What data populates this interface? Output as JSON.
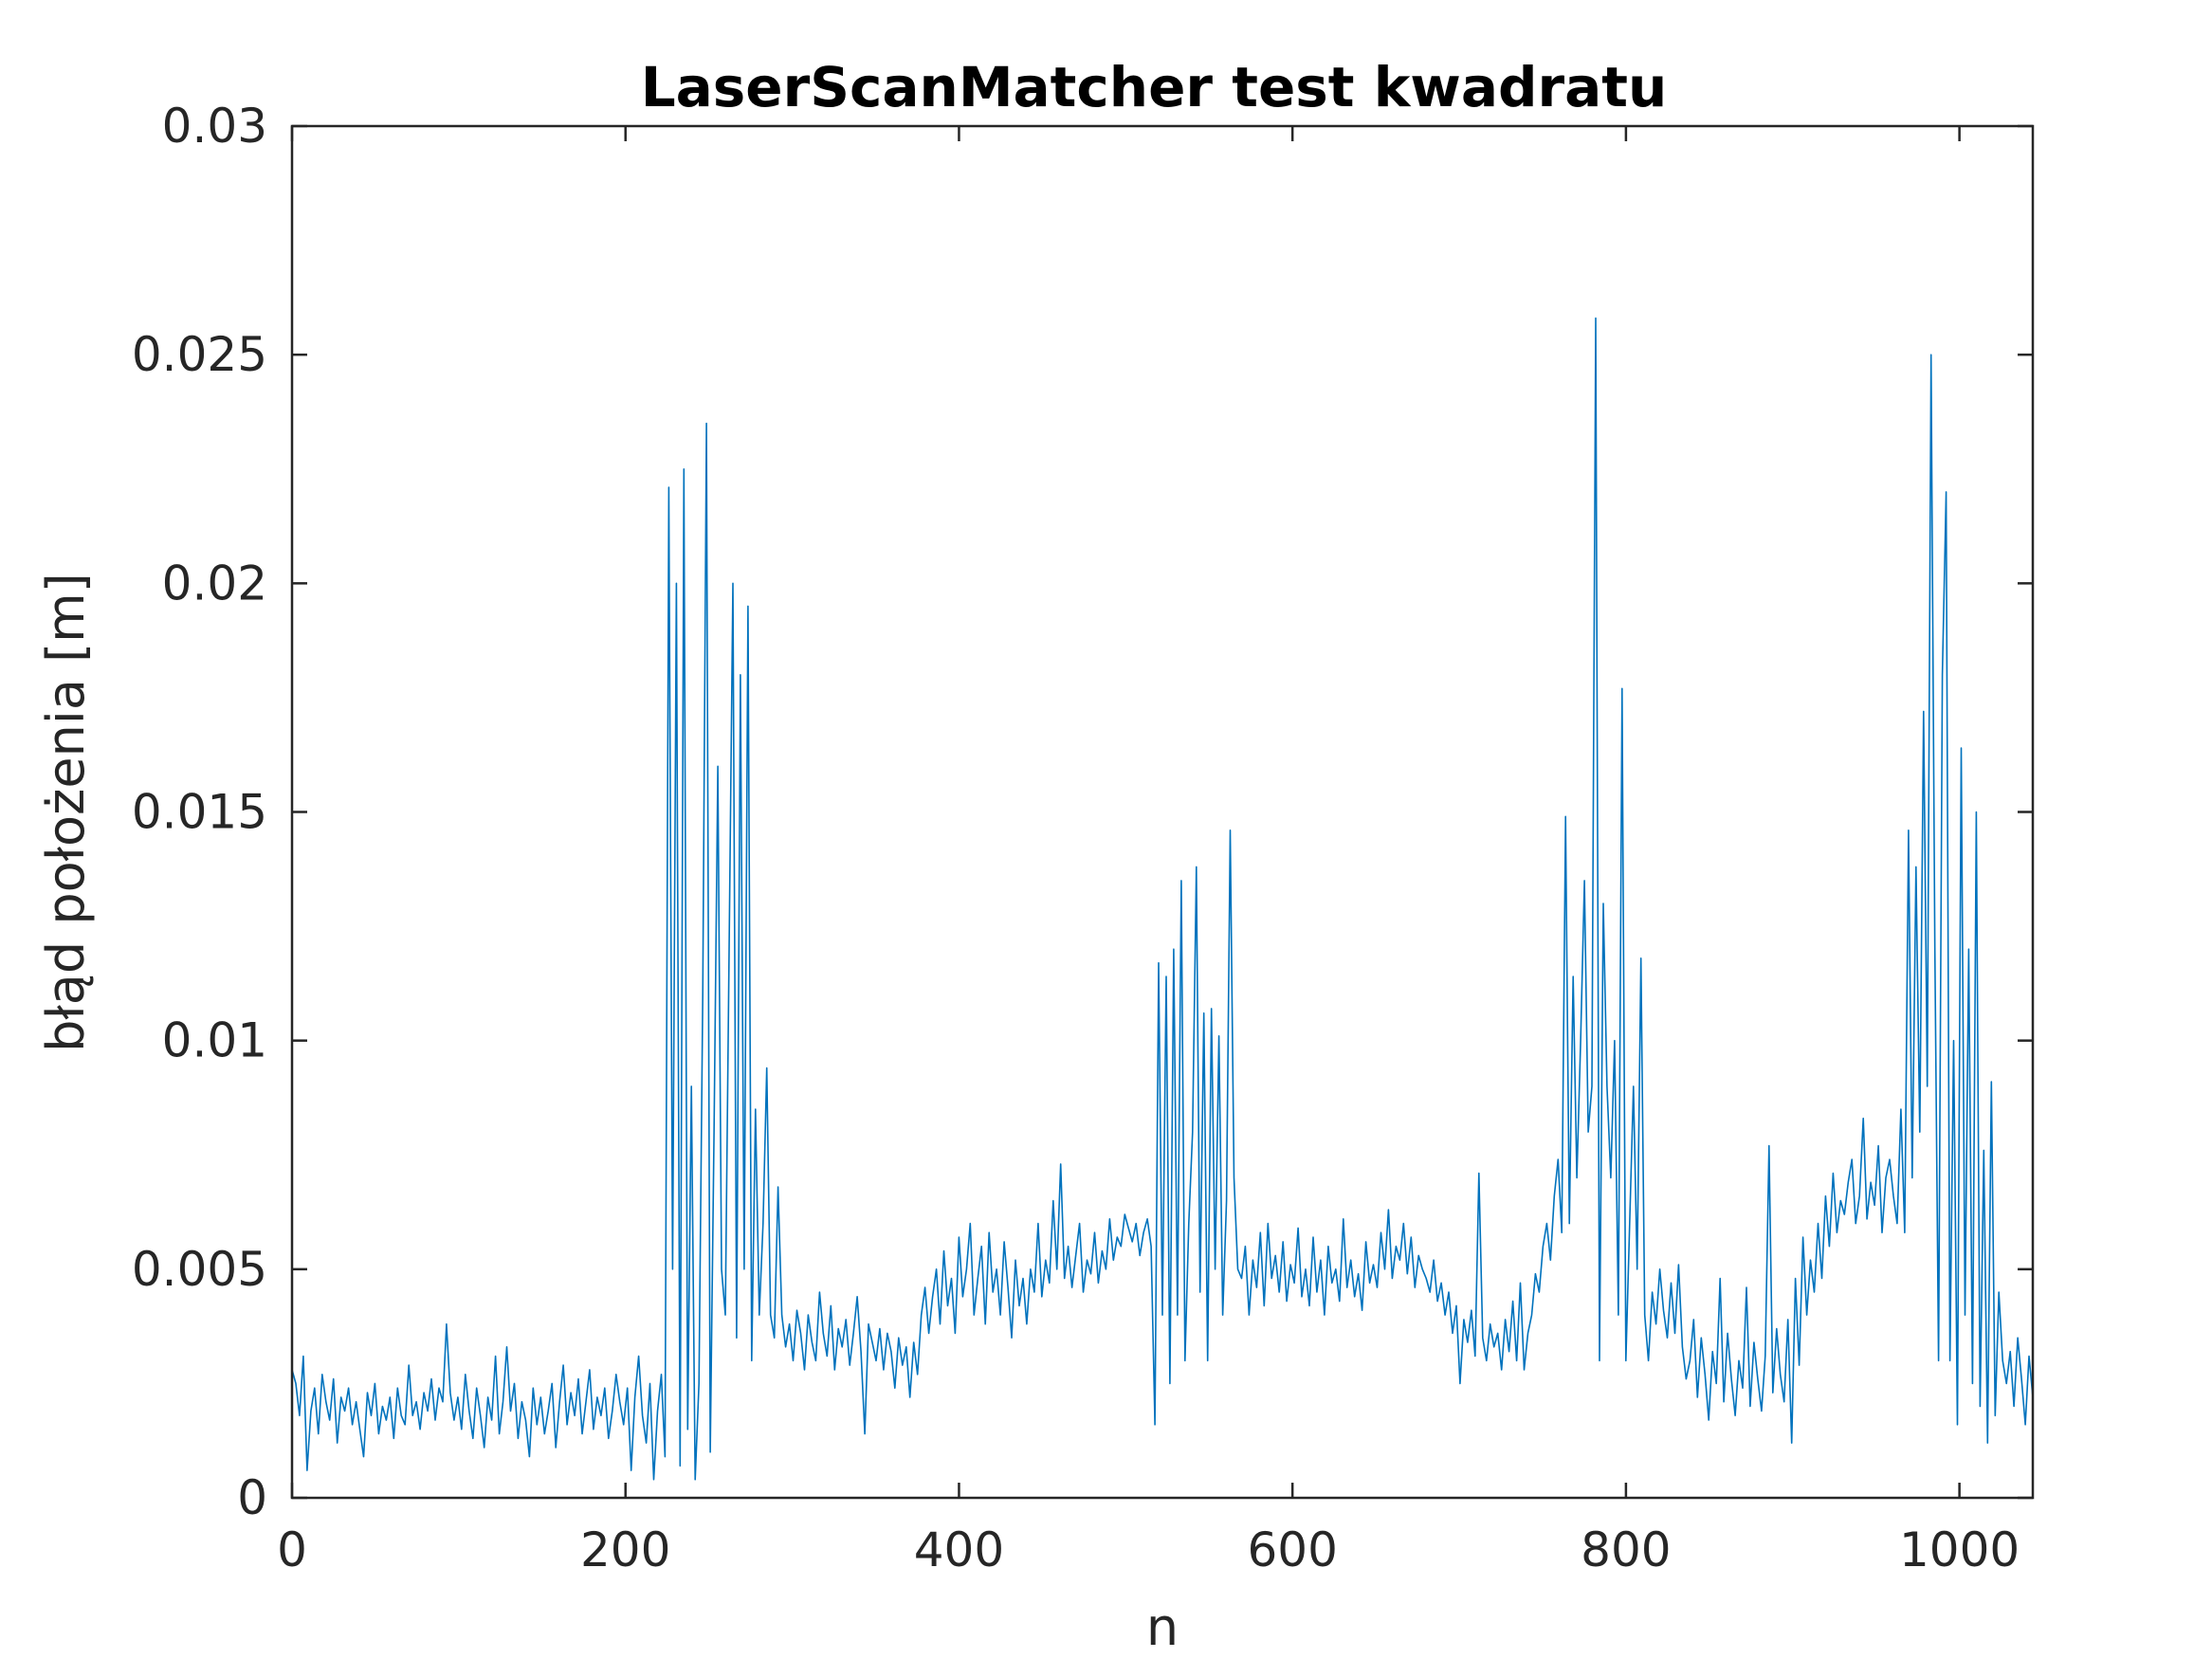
{
  "chart_data": {
    "type": "line",
    "title": "LaserScanMatcher test kwadratu",
    "xlabel": "n",
    "ylabel": "błąd położenia [m]",
    "xlim": [
      0,
      1044
    ],
    "ylim": [
      0,
      0.03
    ],
    "xticks": [
      0,
      200,
      400,
      600,
      800,
      1000
    ],
    "yticks": [
      0,
      0.005,
      0.01,
      0.015,
      0.02,
      0.025,
      0.03
    ],
    "grid": false,
    "legend": "none",
    "line_color": "#0072BD",
    "series": [
      {
        "values": [
          0.0028,
          0.0025,
          0.0018,
          0.0031,
          0.0006,
          0.0019,
          0.0024,
          0.0014,
          0.0027,
          0.0021,
          0.0017,
          0.0026,
          0.0012,
          0.0022,
          0.0019,
          0.0024,
          0.0016,
          0.0021,
          0.0015,
          0.0009,
          0.0023,
          0.0018,
          0.0025,
          0.0014,
          0.002,
          0.0017,
          0.0022,
          0.0013,
          0.0024,
          0.0018,
          0.0016,
          0.0029,
          0.0018,
          0.0021,
          0.0015,
          0.0023,
          0.0019,
          0.0026,
          0.0017,
          0.0024,
          0.0021,
          0.0038,
          0.0023,
          0.0017,
          0.0022,
          0.0015,
          0.0027,
          0.0019,
          0.0013,
          0.0024,
          0.0018,
          0.0011,
          0.0022,
          0.0017,
          0.0031,
          0.0014,
          0.0021,
          0.0033,
          0.0019,
          0.0025,
          0.0013,
          0.0021,
          0.0017,
          0.0009,
          0.0024,
          0.0016,
          0.0022,
          0.0014,
          0.0019,
          0.0025,
          0.0011,
          0.0021,
          0.0029,
          0.0016,
          0.0023,
          0.0018,
          0.0026,
          0.0014,
          0.0021,
          0.0028,
          0.0015,
          0.0022,
          0.0018,
          0.0024,
          0.0013,
          0.0019,
          0.0027,
          0.0021,
          0.0016,
          0.0024,
          0.0006,
          0.0022,
          0.0031,
          0.0018,
          0.0012,
          0.0025,
          0.0004,
          0.0019,
          0.0027,
          0.0009,
          0.0221,
          0.005,
          0.02,
          0.0007,
          0.0225,
          0.0015,
          0.009,
          0.0004,
          0.0025,
          0.011,
          0.0235,
          0.001,
          0.008,
          0.016,
          0.005,
          0.004,
          0.012,
          0.02,
          0.0035,
          0.018,
          0.005,
          0.0195,
          0.003,
          0.0085,
          0.004,
          0.006,
          0.0094,
          0.004,
          0.0035,
          0.0068,
          0.004,
          0.0033,
          0.0038,
          0.003,
          0.0041,
          0.0036,
          0.0028,
          0.004,
          0.0034,
          0.003,
          0.0045,
          0.0036,
          0.0031,
          0.0042,
          0.0028,
          0.0037,
          0.0033,
          0.0039,
          0.0029,
          0.0036,
          0.0044,
          0.0032,
          0.0014,
          0.0038,
          0.0034,
          0.003,
          0.0037,
          0.0028,
          0.0036,
          0.0032,
          0.0024,
          0.0035,
          0.0029,
          0.0033,
          0.0022,
          0.0034,
          0.0027,
          0.004,
          0.0046,
          0.0036,
          0.0044,
          0.005,
          0.0038,
          0.0054,
          0.0042,
          0.0048,
          0.0036,
          0.0057,
          0.0044,
          0.005,
          0.006,
          0.004,
          0.0048,
          0.0055,
          0.0038,
          0.0058,
          0.0045,
          0.005,
          0.004,
          0.0056,
          0.0046,
          0.0035,
          0.0052,
          0.0042,
          0.0048,
          0.0038,
          0.005,
          0.0045,
          0.006,
          0.0044,
          0.0052,
          0.0047,
          0.0065,
          0.005,
          0.0073,
          0.0048,
          0.0055,
          0.0046,
          0.0053,
          0.006,
          0.0045,
          0.0052,
          0.0049,
          0.0058,
          0.0047,
          0.0054,
          0.005,
          0.0061,
          0.0052,
          0.0057,
          0.0055,
          0.0062,
          0.0059,
          0.0056,
          0.006,
          0.0053,
          0.0058,
          0.0061,
          0.0055,
          0.0016,
          0.0117,
          0.004,
          0.0114,
          0.0025,
          0.012,
          0.004,
          0.0135,
          0.003,
          0.006,
          0.008,
          0.0138,
          0.0045,
          0.0106,
          0.003,
          0.0107,
          0.005,
          0.0101,
          0.004,
          0.0065,
          0.0146,
          0.007,
          0.005,
          0.0048,
          0.0055,
          0.004,
          0.0052,
          0.0046,
          0.0058,
          0.0042,
          0.006,
          0.0048,
          0.0053,
          0.0045,
          0.0056,
          0.0043,
          0.0051,
          0.0047,
          0.0059,
          0.0044,
          0.005,
          0.0042,
          0.0057,
          0.0045,
          0.0052,
          0.004,
          0.0055,
          0.0047,
          0.005,
          0.0043,
          0.0061,
          0.0046,
          0.0052,
          0.0044,
          0.0049,
          0.0041,
          0.0056,
          0.0047,
          0.0051,
          0.0046,
          0.0058,
          0.005,
          0.0063,
          0.0048,
          0.0055,
          0.0052,
          0.006,
          0.0049,
          0.0057,
          0.0046,
          0.0053,
          0.005,
          0.0048,
          0.0045,
          0.0052,
          0.0043,
          0.0047,
          0.004,
          0.0045,
          0.0036,
          0.0042,
          0.0025,
          0.0039,
          0.0034,
          0.0041,
          0.0031,
          0.0071,
          0.0035,
          0.003,
          0.0038,
          0.0033,
          0.0036,
          0.0028,
          0.0039,
          0.0032,
          0.0043,
          0.003,
          0.0047,
          0.0028,
          0.0036,
          0.004,
          0.0049,
          0.0045,
          0.0055,
          0.006,
          0.0052,
          0.0066,
          0.0074,
          0.0058,
          0.0149,
          0.006,
          0.0114,
          0.007,
          0.01,
          0.0135,
          0.008,
          0.009,
          0.0258,
          0.003,
          0.013,
          0.009,
          0.007,
          0.01,
          0.004,
          0.0177,
          0.003,
          0.006,
          0.009,
          0.005,
          0.0118,
          0.004,
          0.003,
          0.0045,
          0.0038,
          0.005,
          0.0041,
          0.0035,
          0.0047,
          0.0036,
          0.0051,
          0.0033,
          0.0026,
          0.003,
          0.0039,
          0.0022,
          0.0035,
          0.0027,
          0.0017,
          0.0032,
          0.0025,
          0.0048,
          0.0021,
          0.0036,
          0.0026,
          0.0018,
          0.003,
          0.0024,
          0.0046,
          0.002,
          0.0034,
          0.0026,
          0.0019,
          0.0031,
          0.0077,
          0.0023,
          0.0037,
          0.0027,
          0.0021,
          0.0039,
          0.0012,
          0.0048,
          0.0029,
          0.0057,
          0.004,
          0.0052,
          0.0045,
          0.006,
          0.0048,
          0.0066,
          0.0055,
          0.0071,
          0.0058,
          0.0065,
          0.0062,
          0.0069,
          0.0074,
          0.006,
          0.0066,
          0.0083,
          0.0061,
          0.0069,
          0.0064,
          0.0077,
          0.0058,
          0.007,
          0.0074,
          0.0066,
          0.006,
          0.0085,
          0.0058,
          0.0146,
          0.007,
          0.0138,
          0.008,
          0.0172,
          0.009,
          0.025,
          0.012,
          0.003,
          0.018,
          0.022,
          0.003,
          0.01,
          0.0016,
          0.0164,
          0.004,
          0.012,
          0.0025,
          0.015,
          0.002,
          0.0076,
          0.0012,
          0.0091,
          0.0018,
          0.0045,
          0.003,
          0.0025,
          0.0032,
          0.002,
          0.0035,
          0.0026,
          0.0016,
          0.0031,
          0.0022
        ]
      }
    ]
  }
}
